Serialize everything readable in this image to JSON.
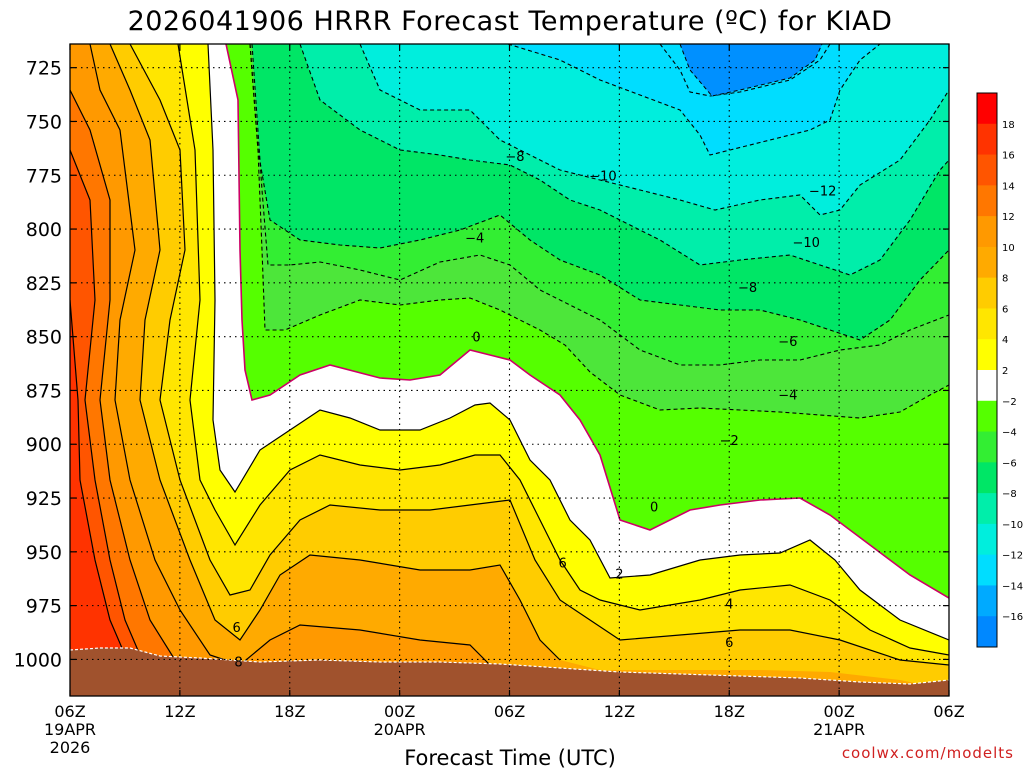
{
  "chart_data": {
    "type": "heatmap",
    "title": "2026041906 HRRR Forecast Temperature (ºC) for KIAD",
    "xlabel": "Forecast Time (UTC)",
    "ylabel": "",
    "credit": "coolwx.com/modelts",
    "y_scale": "pressure (hPa), decreasing upward",
    "ylim": [
      1017,
      714
    ],
    "y_ticks": [
      725,
      750,
      775,
      800,
      825,
      850,
      875,
      900,
      925,
      950,
      975,
      1000
    ],
    "x_ticks": [
      {
        "h": 0,
        "label": "06Z",
        "sub1": "19APR",
        "sub2": "2026"
      },
      {
        "h": 6,
        "label": "12Z",
        "sub1": "",
        "sub2": ""
      },
      {
        "h": 12,
        "label": "18Z",
        "sub1": "",
        "sub2": ""
      },
      {
        "h": 18,
        "label": "00Z",
        "sub1": "20APR",
        "sub2": ""
      },
      {
        "h": 24,
        "label": "06Z",
        "sub1": "",
        "sub2": ""
      },
      {
        "h": 30,
        "label": "12Z",
        "sub1": "",
        "sub2": ""
      },
      {
        "h": 36,
        "label": "18Z",
        "sub1": "",
        "sub2": ""
      },
      {
        "h": 42,
        "label": "00Z",
        "sub1": "21APR",
        "sub2": ""
      },
      {
        "h": 48,
        "label": "06Z",
        "sub1": "",
        "sub2": ""
      }
    ],
    "grid": true,
    "colorbar": {
      "position": "right",
      "levels": [
        18,
        16,
        14,
        12,
        10,
        8,
        6,
        4,
        2,
        -2,
        -4,
        -6,
        -8,
        -10,
        -12,
        -14,
        -16
      ],
      "colors": [
        "#ff0000",
        "#ff3300",
        "#ff5500",
        "#ff7700",
        "#ff9900",
        "#ffaa00",
        "#ffcc00",
        "#ffe600",
        "#ffff00",
        "#ffffff",
        "#55ff00",
        "#33ee33",
        "#00e666",
        "#00eeaa",
        "#00eedd",
        "#00ddff",
        "#00aaff",
        "#0088ff"
      ]
    },
    "contour_labels": [
      {
        "h": 9.1,
        "p": 985,
        "text": "6"
      },
      {
        "h": 9.2,
        "p": 1001,
        "text": "8"
      },
      {
        "h": 26.9,
        "p": 955,
        "text": "6"
      },
      {
        "h": 30.0,
        "p": 960,
        "text": "2"
      },
      {
        "h": 36.0,
        "p": 974,
        "text": "4"
      },
      {
        "h": 36.0,
        "p": 992,
        "text": "6"
      },
      {
        "h": 31.9,
        "p": 929,
        "text": "0"
      },
      {
        "h": 22.2,
        "p": 850,
        "text": "0"
      },
      {
        "h": 36.0,
        "p": 898,
        "text": "−2"
      },
      {
        "h": 39.2,
        "p": 877,
        "text": "−4"
      },
      {
        "h": 39.2,
        "p": 852,
        "text": "−6"
      },
      {
        "h": 37.0,
        "p": 827,
        "text": "−8"
      },
      {
        "h": 22.1,
        "p": 804,
        "text": "−4"
      },
      {
        "h": 24.3,
        "p": 766,
        "text": "−8"
      },
      {
        "h": 29.1,
        "p": 775,
        "text": "−10"
      },
      {
        "h": 40.2,
        "p": 806,
        "text": "−10"
      },
      {
        "h": 41.1,
        "p": 782,
        "text": "−12"
      }
    ]
  }
}
